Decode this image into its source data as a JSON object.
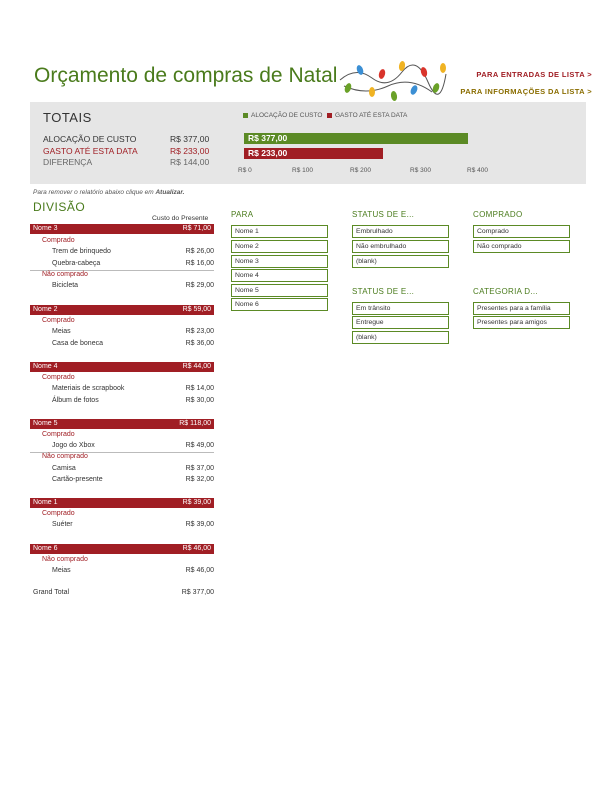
{
  "header": {
    "title": "Orçamento de compras de Natal",
    "link_entries": "PARA ENTRADAS DE LISTA >",
    "link_info": "PARA INFORMAÇÕES DA LISTA >"
  },
  "colors": {
    "green": "#5b8a25",
    "red": "#a01e24",
    "title_green": "#4a7b1c",
    "panel": "#e6e6e6"
  },
  "totals": {
    "title": "TOTAIS",
    "rows": [
      {
        "label": "ALOCAÇÃO DE CUSTO",
        "value": "R$ 377,00"
      },
      {
        "label": "GASTO ATÉ ESTA DATA",
        "value": "R$ 233,00"
      },
      {
        "label": "DIFERENÇA",
        "value": "R$ 144,00"
      }
    ]
  },
  "chart_data": {
    "type": "bar",
    "orientation": "horizontal",
    "categories": [
      "ALOCAÇÃO DE CUSTO",
      "GASTO ATÉ ESTA DATA"
    ],
    "values": [
      377,
      233
    ],
    "value_labels": [
      "R$ 377,00",
      "R$ 233,00"
    ],
    "legend": [
      "ALOCAÇÃO DE CUSTO",
      "GASTO ATÉ ESTA DATA"
    ],
    "legend_position": "top",
    "xticks": [
      "R$ 0",
      "R$ 100",
      "R$ 200",
      "R$ 300",
      "R$ 400"
    ],
    "xlim": [
      0,
      400
    ],
    "colors": [
      "#5b8a25",
      "#a01e24"
    ]
  },
  "report": {
    "refresh_note_prefix": "Para remover o relatório abaixo clique em",
    "refresh_note_action": "Atualizar.",
    "section_title": "DIVISÃO",
    "column_header": "Custo do Presente",
    "groups": [
      {
        "name": "Nome 3",
        "total": "R$ 71,00",
        "statuses": [
          {
            "label": "Comprado",
            "items": [
              {
                "name": "Trem de brinquedo",
                "value": "R$ 26,00"
              },
              {
                "name": "Quebra-cabeça",
                "value": "R$ 16,00"
              }
            ]
          },
          {
            "label": "Não comprado",
            "items": [
              {
                "name": "Bicicleta",
                "value": "R$ 29,00"
              }
            ]
          }
        ]
      },
      {
        "name": "Nome 2",
        "total": "R$ 59,00",
        "statuses": [
          {
            "label": "Comprado",
            "items": [
              {
                "name": "Meias",
                "value": "R$ 23,00"
              },
              {
                "name": "Casa de boneca",
                "value": "R$ 36,00"
              }
            ]
          }
        ]
      },
      {
        "name": "Nome 4",
        "total": "R$ 44,00",
        "statuses": [
          {
            "label": "Comprado",
            "items": [
              {
                "name": "Materiais de scrapbook",
                "value": "R$ 14,00"
              },
              {
                "name": "Álbum de fotos",
                "value": "R$ 30,00"
              }
            ]
          }
        ]
      },
      {
        "name": "Nome 5",
        "total": "R$ 118,00",
        "statuses": [
          {
            "label": "Comprado",
            "items": [
              {
                "name": "Jogo do Xbox",
                "value": "R$ 49,00"
              }
            ]
          },
          {
            "label": "Não comprado",
            "items": [
              {
                "name": "Camisa",
                "value": "R$ 37,00"
              },
              {
                "name": "Cartão-presente",
                "value": "R$ 32,00"
              }
            ]
          }
        ]
      },
      {
        "name": "Nome 1",
        "total": "R$ 39,00",
        "statuses": [
          {
            "label": "Comprado",
            "items": [
              {
                "name": "Suéter",
                "value": "R$ 39,00"
              }
            ]
          }
        ]
      },
      {
        "name": "Nome 6",
        "total": "R$ 46,00",
        "statuses": [
          {
            "label": "Não comprado",
            "items": [
              {
                "name": "Meias",
                "value": "R$ 46,00"
              }
            ]
          }
        ]
      }
    ],
    "grand_total_label": "Grand Total",
    "grand_total_value": "R$ 377,00"
  },
  "slicers": {
    "para": {
      "title": "PARA",
      "items": [
        "Nome 1",
        "Nome 2",
        "Nome 3",
        "Nome 4",
        "Nome 5",
        "Nome 6"
      ]
    },
    "status_embrulho": {
      "title": "STATUS DE E...",
      "items": [
        "Embrulhado",
        "Não embrulhado",
        "(blank)"
      ]
    },
    "comprado": {
      "title": "COMPRADO",
      "items": [
        "Comprado",
        "Não comprado"
      ]
    },
    "status_entrega": {
      "title": "STATUS DE E...",
      "items": [
        "Em trânsito",
        "Entregue",
        "(blank)"
      ]
    },
    "categoria": {
      "title": "CATEGORIA D...",
      "items": [
        "Presentes para a família",
        "Presentes para amigos"
      ]
    }
  }
}
